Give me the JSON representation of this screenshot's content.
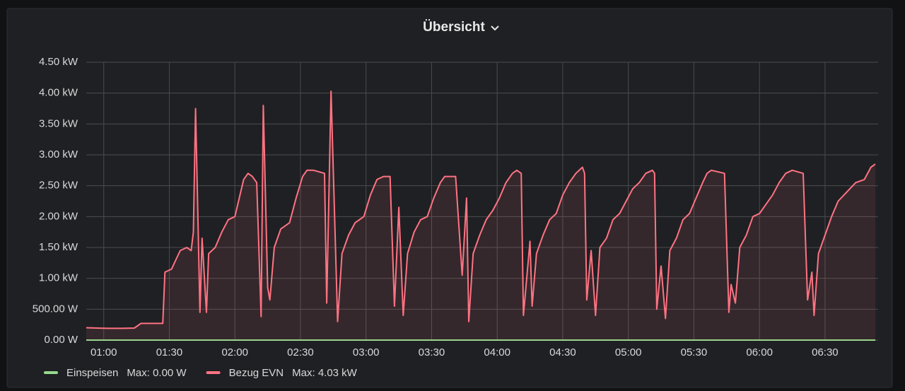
{
  "chart_data": {
    "type": "line",
    "title": "Übersicht",
    "x": [
      "00:52",
      "00:57",
      "01:02",
      "01:08",
      "01:14",
      "01:17",
      "01:22",
      "01:27",
      "01:28",
      "01:31",
      "01:33",
      "01:35",
      "01:38",
      "01:40",
      "01:41",
      "01:42",
      "01:44",
      "01:45",
      "01:47",
      "01:48",
      "01:51",
      "01:54",
      "01:57",
      "02:00",
      "02:02",
      "02:04",
      "02:06",
      "02:08",
      "02:10",
      "02:12",
      "02:13",
      "02:15",
      "02:16",
      "02:18",
      "02:21",
      "02:25",
      "02:28",
      "02:31",
      "02:33",
      "02:36",
      "02:41",
      "02:42",
      "02:44",
      "02:47",
      "02:49",
      "02:52",
      "02:55",
      "02:59",
      "03:02",
      "03:05",
      "03:08",
      "03:11",
      "03:13",
      "03:15",
      "03:17",
      "03:19",
      "03:22",
      "03:25",
      "03:28",
      "03:31",
      "03:34",
      "03:36",
      "03:41",
      "03:44",
      "03:46",
      "03:47",
      "03:49",
      "03:52",
      "03:55",
      "03:58",
      "04:01",
      "04:04",
      "04:07",
      "04:09",
      "04:11",
      "04:12",
      "04:15",
      "04:16",
      "04:18",
      "04:21",
      "04:24",
      "04:27",
      "04:30",
      "04:33",
      "04:36",
      "04:39",
      "04:40",
      "04:41",
      "04:43",
      "04:45",
      "04:47",
      "04:50",
      "04:53",
      "04:56",
      "04:59",
      "05:02",
      "05:05",
      "05:08",
      "05:11",
      "05:12",
      "05:13",
      "05:15",
      "05:17",
      "05:19",
      "05:22",
      "05:25",
      "05:28",
      "05:31",
      "05:34",
      "05:36",
      "05:38",
      "05:44",
      "05:46",
      "05:47",
      "05:49",
      "05:51",
      "05:54",
      "05:57",
      "06:00",
      "06:03",
      "06:06",
      "06:09",
      "06:12",
      "06:15",
      "06:20",
      "06:22",
      "06:24",
      "06:25",
      "06:27",
      "06:30",
      "06:33",
      "06:36",
      "06:40",
      "06:44",
      "06:48",
      "06:51",
      "06:53"
    ],
    "series": [
      {
        "name": "Einspeisen",
        "color": "#96d98d",
        "legend_value": "Max: 0.00 W",
        "values": [
          0,
          0,
          0,
          0,
          0,
          0,
          0,
          0,
          0,
          0,
          0,
          0,
          0,
          0,
          0,
          0,
          0,
          0,
          0,
          0,
          0,
          0,
          0,
          0,
          0,
          0,
          0,
          0,
          0,
          0,
          0,
          0,
          0,
          0,
          0,
          0,
          0,
          0,
          0,
          0,
          0,
          0,
          0,
          0,
          0,
          0,
          0,
          0,
          0,
          0,
          0,
          0,
          0,
          0,
          0,
          0,
          0,
          0,
          0,
          0,
          0,
          0,
          0,
          0,
          0,
          0,
          0,
          0,
          0,
          0,
          0,
          0,
          0,
          0,
          0,
          0,
          0,
          0,
          0,
          0,
          0,
          0,
          0,
          0,
          0,
          0,
          0,
          0,
          0,
          0,
          0,
          0,
          0,
          0,
          0,
          0,
          0,
          0,
          0,
          0,
          0,
          0,
          0,
          0,
          0,
          0,
          0,
          0,
          0,
          0,
          0,
          0,
          0,
          0,
          0,
          0,
          0,
          0,
          0,
          0,
          0,
          0,
          0,
          0,
          0,
          0,
          0,
          0,
          0,
          0,
          0,
          0,
          0,
          0,
          0,
          0,
          0
        ]
      },
      {
        "name": "Bezug EVN",
        "color": "#ff7383",
        "legend_value": "Max: 4.03 kW",
        "values": [
          200,
          195,
          190,
          190,
          195,
          270,
          270,
          270,
          1100,
          1150,
          1300,
          1450,
          1500,
          1450,
          1750,
          3750,
          450,
          1650,
          450,
          1400,
          1500,
          1750,
          1950,
          2000,
          2300,
          2600,
          2700,
          2650,
          2550,
          380,
          3800,
          850,
          650,
          1500,
          1800,
          1900,
          2300,
          2650,
          2750,
          2750,
          2700,
          600,
          4030,
          300,
          1400,
          1700,
          1900,
          2000,
          2350,
          2600,
          2650,
          2650,
          550,
          2150,
          400,
          1400,
          1750,
          1950,
          2000,
          2300,
          2550,
          2650,
          2650,
          1050,
          2300,
          300,
          1400,
          1700,
          1950,
          2100,
          2300,
          2550,
          2700,
          2750,
          2700,
          400,
          1600,
          550,
          1400,
          1700,
          1950,
          2050,
          2350,
          2550,
          2700,
          2800,
          2700,
          650,
          1450,
          400,
          1500,
          1650,
          1950,
          2050,
          2250,
          2450,
          2550,
          2700,
          2750,
          2700,
          500,
          1200,
          350,
          1450,
          1650,
          1950,
          2050,
          2300,
          2550,
          2700,
          2750,
          2700,
          450,
          900,
          600,
          1500,
          1700,
          2000,
          2050,
          2200,
          2350,
          2550,
          2700,
          2750,
          2700,
          650,
          1100,
          400,
          1400,
          1700,
          2000,
          2250,
          2400,
          2550,
          2600,
          2800,
          2850
        ]
      }
    ],
    "xlim": [
      "00:52",
      "06:53"
    ],
    "xticks": [
      "01:00",
      "01:30",
      "02:00",
      "02:30",
      "03:00",
      "03:30",
      "04:00",
      "04:30",
      "05:00",
      "05:30",
      "06:00",
      "06:30"
    ],
    "ylim": [
      0,
      4500
    ],
    "yticks": [
      {
        "value": 0,
        "label": "0.00 W"
      },
      {
        "value": 500,
        "label": "500.00 W"
      },
      {
        "value": 1000,
        "label": "1.00 kW"
      },
      {
        "value": 1500,
        "label": "1.50 kW"
      },
      {
        "value": 2000,
        "label": "2.00 kW"
      },
      {
        "value": 2500,
        "label": "2.50 kW"
      },
      {
        "value": 3000,
        "label": "3.00 kW"
      },
      {
        "value": 3500,
        "label": "3.50 kW"
      },
      {
        "value": 4000,
        "label": "4.00 kW"
      },
      {
        "value": 4500,
        "label": "4.50 kW"
      }
    ],
    "grid": true
  }
}
